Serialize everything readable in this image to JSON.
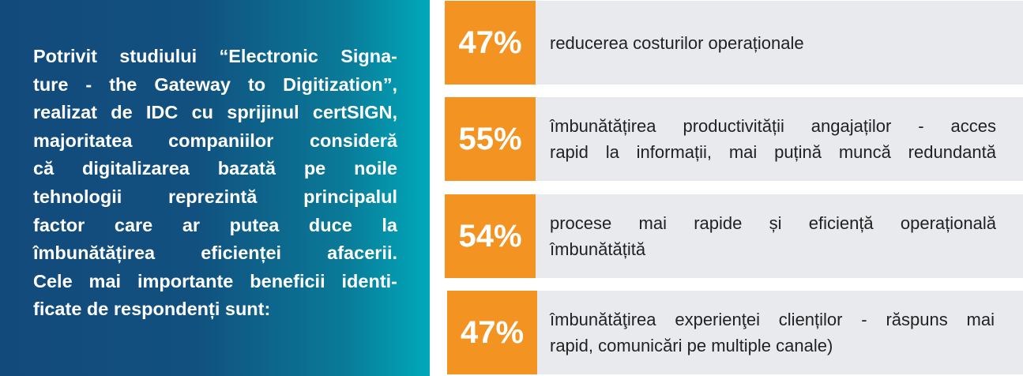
{
  "intro": {
    "lines": [
      "Potrivit studiului “Electronic Signa-",
      "ture - the Gateway to Digitization”,",
      "realizat de IDC cu sprijinul certSIGN,",
      "majoritatea companiilor consideră",
      "că digitalizarea bazată pe noile",
      "tehnologii reprezintă principalul",
      "factor care ar putea duce la",
      "îmbunătățirea eficienței afacerii.",
      "Cele mai importante beneficii identi-",
      "ficate de respondenți sunt:"
    ]
  },
  "benefits": [
    {
      "percent": "47%",
      "lines": [
        "reducerea costurilor operaționale"
      ]
    },
    {
      "percent": "55%",
      "lines": [
        "îmbunătățirea productivității angajaților - acces",
        "rapid la informații, mai puțină muncă redundantă"
      ]
    },
    {
      "percent": "54%",
      "lines": [
        "procese mai rapide și eficiență operațională",
        "îmbunătățită"
      ]
    },
    {
      "percent": "47%",
      "lines": [
        "îmbunătăţirea experienţei clienților - răspuns mai",
        "rapid, comunicări pe multiple canale)"
      ]
    }
  ],
  "colors": {
    "accent": "#f39322",
    "card": "#e9eaee",
    "gradient_start": "#134a7c",
    "gradient_end": "#00a9ba"
  }
}
